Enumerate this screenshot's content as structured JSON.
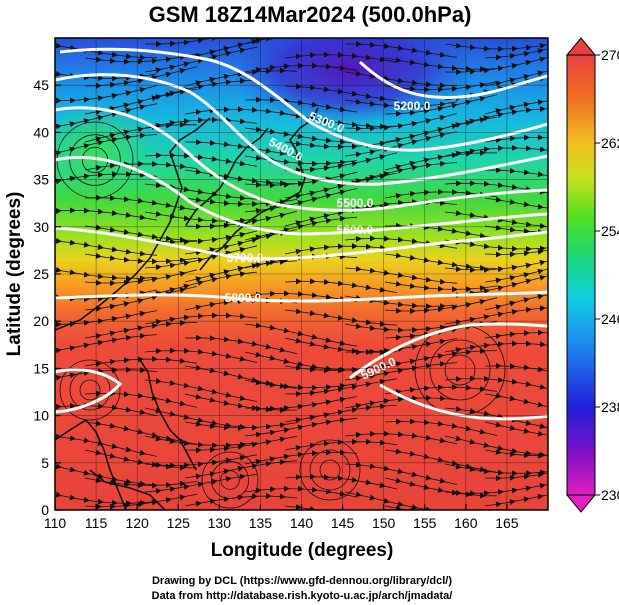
{
  "title": "GSM 18Z14Mar2024 (500.0hPa)",
  "x_label": "Longitude (degrees)",
  "y_label": "Latitude  (degrees)",
  "x_ticks": [
    "110",
    "115",
    "120",
    "125",
    "130",
    "135",
    "140",
    "145",
    "150",
    "155",
    "160",
    "165"
  ],
  "y_ticks": [
    "0",
    "5",
    "10",
    "15",
    "20",
    "25",
    "30",
    "35",
    "40",
    "45"
  ],
  "colorbar_ticks": [
    "230",
    "238",
    "246",
    "254",
    "262",
    "270"
  ],
  "colorbar_range": [
    230,
    270
  ],
  "contours": [
    {
      "label": "5200.0",
      "value": 5200
    },
    {
      "label": "5300.0",
      "value": 5300
    },
    {
      "label": "5400.0",
      "value": 5400
    },
    {
      "label": "5500.0",
      "value": 5500
    },
    {
      "label": "5600.0",
      "value": 5600
    },
    {
      "label": "5700.0",
      "value": 5700
    },
    {
      "label": "5800.0",
      "value": 5800
    },
    {
      "label": "5900.0",
      "value": 5900
    }
  ],
  "credits": {
    "line1": "Drawing by DCL (https://www.gfd-dennou.org/library/dcl/)",
    "line2": "Data from http://database.rish.kyoto-u.ac.jp/arch/jmadata/"
  },
  "map_extent": {
    "lon": [
      110,
      170
    ],
    "lat": [
      0,
      50
    ]
  }
}
